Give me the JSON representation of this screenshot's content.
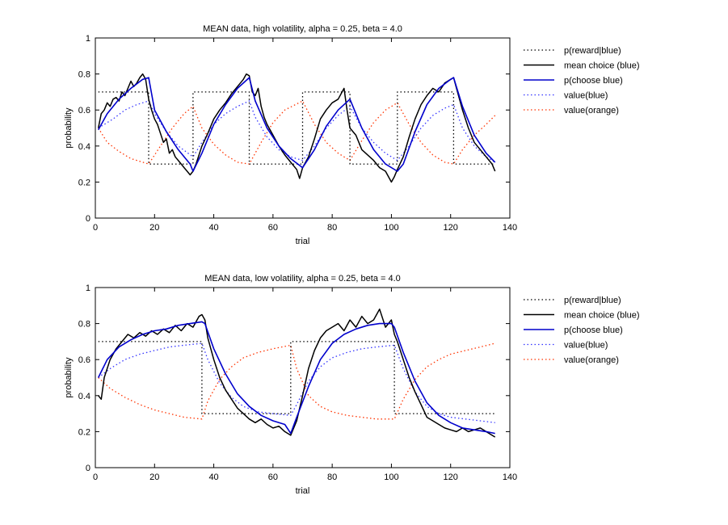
{
  "chart_data": [
    {
      "type": "line",
      "title": "MEAN data, high volatility, alpha = 0.25, beta = 4.0",
      "xlabel": "trial",
      "ylabel": "probability",
      "xlim": [
        0,
        140
      ],
      "ylim": [
        0,
        1
      ],
      "xticks": [
        0,
        20,
        40,
        60,
        80,
        100,
        120,
        140
      ],
      "yticks": [
        0,
        0.2,
        0.4,
        0.6,
        0.8,
        1
      ],
      "legend_position": "outside-right",
      "series": [
        {
          "name": "p(reward|blue)",
          "style": "dotted",
          "color": "#000000",
          "x": [
            1,
            18,
            18,
            33,
            33,
            52,
            52,
            70,
            70,
            86,
            86,
            102,
            102,
            121,
            121,
            135
          ],
          "y": [
            0.7,
            0.7,
            0.3,
            0.3,
            0.7,
            0.7,
            0.3,
            0.3,
            0.7,
            0.7,
            0.3,
            0.3,
            0.7,
            0.7,
            0.3,
            0.3
          ]
        },
        {
          "name": "mean choice (blue)",
          "style": "solid",
          "color": "#000000",
          "x": [
            1,
            2,
            3,
            4,
            5,
            6,
            7,
            8,
            9,
            10,
            11,
            12,
            13,
            14,
            15,
            16,
            17,
            18,
            19,
            20,
            21,
            22,
            23,
            24,
            25,
            26,
            27,
            28,
            29,
            30,
            31,
            32,
            33,
            34,
            36,
            38,
            40,
            42,
            44,
            46,
            48,
            50,
            51,
            52,
            53,
            54,
            55,
            56,
            57,
            58,
            60,
            62,
            64,
            66,
            68,
            69,
            70,
            72,
            74,
            76,
            78,
            80,
            82,
            84,
            85,
            86,
            88,
            90,
            92,
            94,
            96,
            98,
            100,
            101,
            102,
            104,
            106,
            108,
            110,
            112,
            114,
            116,
            118,
            120,
            121,
            122,
            124,
            126,
            128,
            130,
            132,
            134,
            135
          ],
          "y": [
            0.5,
            0.58,
            0.6,
            0.64,
            0.62,
            0.66,
            0.67,
            0.65,
            0.7,
            0.68,
            0.72,
            0.76,
            0.73,
            0.75,
            0.78,
            0.8,
            0.77,
            0.66,
            0.6,
            0.55,
            0.52,
            0.47,
            0.42,
            0.44,
            0.36,
            0.38,
            0.34,
            0.32,
            0.3,
            0.28,
            0.26,
            0.24,
            0.26,
            0.3,
            0.4,
            0.47,
            0.55,
            0.6,
            0.64,
            0.69,
            0.73,
            0.77,
            0.8,
            0.79,
            0.7,
            0.68,
            0.72,
            0.62,
            0.56,
            0.52,
            0.46,
            0.4,
            0.35,
            0.31,
            0.27,
            0.22,
            0.28,
            0.34,
            0.44,
            0.55,
            0.6,
            0.64,
            0.66,
            0.72,
            0.6,
            0.5,
            0.46,
            0.38,
            0.35,
            0.32,
            0.28,
            0.26,
            0.2,
            0.23,
            0.27,
            0.34,
            0.45,
            0.55,
            0.63,
            0.68,
            0.72,
            0.7,
            0.75,
            0.77,
            0.78,
            0.72,
            0.6,
            0.5,
            0.42,
            0.38,
            0.34,
            0.3,
            0.26
          ]
        },
        {
          "name": "p(choose blue)",
          "style": "solid",
          "color": "#0000cc",
          "x": [
            1,
            4,
            8,
            12,
            16,
            18,
            20,
            24,
            28,
            32,
            33,
            36,
            40,
            44,
            48,
            52,
            54,
            58,
            62,
            66,
            70,
            74,
            78,
            82,
            86,
            90,
            94,
            98,
            102,
            104,
            108,
            112,
            116,
            120,
            121,
            124,
            128,
            132,
            135
          ],
          "y": [
            0.49,
            0.58,
            0.66,
            0.72,
            0.77,
            0.78,
            0.6,
            0.48,
            0.38,
            0.3,
            0.26,
            0.36,
            0.52,
            0.63,
            0.72,
            0.78,
            0.65,
            0.5,
            0.4,
            0.33,
            0.28,
            0.38,
            0.51,
            0.6,
            0.66,
            0.5,
            0.38,
            0.3,
            0.26,
            0.3,
            0.48,
            0.63,
            0.72,
            0.77,
            0.78,
            0.62,
            0.46,
            0.36,
            0.31
          ]
        },
        {
          "name": "value(blue)",
          "style": "dotted",
          "color": "#3333ff",
          "x": [
            1,
            6,
            10,
            14,
            18,
            20,
            24,
            28,
            33,
            36,
            40,
            44,
            48,
            52,
            54,
            58,
            62,
            66,
            70,
            74,
            78,
            82,
            86,
            90,
            94,
            98,
            102,
            106,
            110,
            114,
            118,
            121,
            124,
            128,
            132,
            135
          ],
          "y": [
            0.5,
            0.55,
            0.6,
            0.63,
            0.65,
            0.58,
            0.48,
            0.4,
            0.34,
            0.42,
            0.52,
            0.58,
            0.62,
            0.65,
            0.56,
            0.45,
            0.38,
            0.34,
            0.32,
            0.4,
            0.5,
            0.57,
            0.62,
            0.5,
            0.42,
            0.36,
            0.32,
            0.4,
            0.5,
            0.57,
            0.61,
            0.63,
            0.5,
            0.4,
            0.34,
            0.31
          ]
        },
        {
          "name": "value(orange)",
          "style": "dotted",
          "color": "#ff3300",
          "x": [
            1,
            4,
            8,
            12,
            18,
            22,
            26,
            30,
            33,
            36,
            40,
            44,
            48,
            52,
            56,
            60,
            64,
            70,
            74,
            78,
            82,
            86,
            90,
            94,
            98,
            102,
            106,
            110,
            114,
            118,
            121,
            124,
            128,
            132,
            135
          ],
          "y": [
            0.5,
            0.42,
            0.37,
            0.33,
            0.3,
            0.4,
            0.5,
            0.58,
            0.62,
            0.5,
            0.41,
            0.35,
            0.31,
            0.3,
            0.42,
            0.53,
            0.6,
            0.65,
            0.52,
            0.42,
            0.36,
            0.32,
            0.43,
            0.53,
            0.6,
            0.64,
            0.52,
            0.42,
            0.35,
            0.31,
            0.3,
            0.38,
            0.46,
            0.52,
            0.57
          ]
        }
      ]
    },
    {
      "type": "line",
      "title": "MEAN data, low volatility, alpha = 0.25, beta = 4.0",
      "xlabel": "trial",
      "ylabel": "probability",
      "xlim": [
        0,
        140
      ],
      "ylim": [
        0,
        1
      ],
      "xticks": [
        0,
        20,
        40,
        60,
        80,
        100,
        120,
        140
      ],
      "yticks": [
        0,
        0.2,
        0.4,
        0.6,
        0.8,
        1
      ],
      "legend_position": "outside-right",
      "series": [
        {
          "name": "p(reward|blue)",
          "style": "dotted",
          "color": "#000000",
          "x": [
            1,
            36,
            36,
            66,
            66,
            101,
            101,
            135
          ],
          "y": [
            0.7,
            0.7,
            0.3,
            0.3,
            0.7,
            0.7,
            0.3,
            0.3
          ]
        },
        {
          "name": "mean choice (blue)",
          "style": "solid",
          "color": "#000000",
          "x": [
            1,
            2,
            3,
            5,
            7,
            9,
            11,
            13,
            15,
            17,
            19,
            21,
            23,
            25,
            27,
            29,
            31,
            33,
            35,
            36,
            37,
            38,
            40,
            42,
            44,
            46,
            48,
            50,
            52,
            54,
            56,
            58,
            60,
            62,
            64,
            66,
            68,
            70,
            72,
            74,
            76,
            78,
            80,
            82,
            84,
            86,
            88,
            90,
            92,
            94,
            96,
            98,
            100,
            101,
            102,
            104,
            106,
            108,
            110,
            112,
            114,
            116,
            118,
            120,
            122,
            124,
            126,
            128,
            130,
            132,
            134,
            135
          ],
          "y": [
            0.4,
            0.38,
            0.5,
            0.6,
            0.66,
            0.7,
            0.74,
            0.72,
            0.75,
            0.73,
            0.76,
            0.74,
            0.77,
            0.75,
            0.79,
            0.76,
            0.8,
            0.78,
            0.84,
            0.85,
            0.82,
            0.72,
            0.6,
            0.5,
            0.43,
            0.38,
            0.33,
            0.3,
            0.27,
            0.25,
            0.27,
            0.24,
            0.22,
            0.23,
            0.2,
            0.18,
            0.26,
            0.4,
            0.55,
            0.65,
            0.72,
            0.76,
            0.78,
            0.8,
            0.76,
            0.82,
            0.78,
            0.84,
            0.8,
            0.82,
            0.88,
            0.78,
            0.82,
            0.74,
            0.7,
            0.6,
            0.5,
            0.42,
            0.35,
            0.28,
            0.26,
            0.24,
            0.22,
            0.21,
            0.2,
            0.22,
            0.2,
            0.21,
            0.22,
            0.2,
            0.18,
            0.17
          ]
        },
        {
          "name": "p(choose blue)",
          "style": "solid",
          "color": "#0000cc",
          "x": [
            1,
            4,
            8,
            12,
            16,
            20,
            24,
            28,
            32,
            36,
            37,
            40,
            44,
            48,
            52,
            56,
            60,
            64,
            66,
            68,
            72,
            76,
            80,
            84,
            88,
            92,
            96,
            100,
            101,
            104,
            108,
            112,
            116,
            120,
            124,
            128,
            132,
            135
          ],
          "y": [
            0.5,
            0.6,
            0.67,
            0.71,
            0.74,
            0.76,
            0.77,
            0.79,
            0.8,
            0.81,
            0.8,
            0.66,
            0.52,
            0.41,
            0.34,
            0.29,
            0.26,
            0.24,
            0.19,
            0.28,
            0.45,
            0.6,
            0.69,
            0.74,
            0.77,
            0.79,
            0.8,
            0.8,
            0.78,
            0.64,
            0.48,
            0.36,
            0.29,
            0.25,
            0.22,
            0.21,
            0.2,
            0.19
          ]
        },
        {
          "name": "value(blue)",
          "style": "dotted",
          "color": "#3333ff",
          "x": [
            1,
            5,
            10,
            15,
            20,
            25,
            30,
            36,
            38,
            42,
            46,
            50,
            55,
            60,
            66,
            68,
            72,
            76,
            80,
            85,
            90,
            95,
            101,
            104,
            108,
            112,
            116,
            120,
            125,
            130,
            135
          ],
          "y": [
            0.5,
            0.55,
            0.6,
            0.63,
            0.65,
            0.67,
            0.68,
            0.69,
            0.6,
            0.47,
            0.39,
            0.34,
            0.31,
            0.3,
            0.29,
            0.35,
            0.48,
            0.56,
            0.61,
            0.64,
            0.66,
            0.67,
            0.68,
            0.55,
            0.42,
            0.34,
            0.3,
            0.28,
            0.27,
            0.26,
            0.25
          ]
        },
        {
          "name": "value(orange)",
          "style": "dotted",
          "color": "#ff3300",
          "x": [
            1,
            5,
            10,
            15,
            20,
            25,
            30,
            36,
            38,
            42,
            46,
            50,
            55,
            60,
            66,
            68,
            72,
            76,
            80,
            85,
            90,
            95,
            101,
            104,
            108,
            112,
            116,
            120,
            125,
            130,
            135
          ],
          "y": [
            0.5,
            0.44,
            0.39,
            0.35,
            0.32,
            0.3,
            0.28,
            0.27,
            0.37,
            0.49,
            0.56,
            0.61,
            0.64,
            0.66,
            0.68,
            0.55,
            0.4,
            0.34,
            0.31,
            0.29,
            0.28,
            0.27,
            0.27,
            0.38,
            0.49,
            0.56,
            0.6,
            0.63,
            0.65,
            0.67,
            0.69
          ]
        }
      ]
    }
  ]
}
